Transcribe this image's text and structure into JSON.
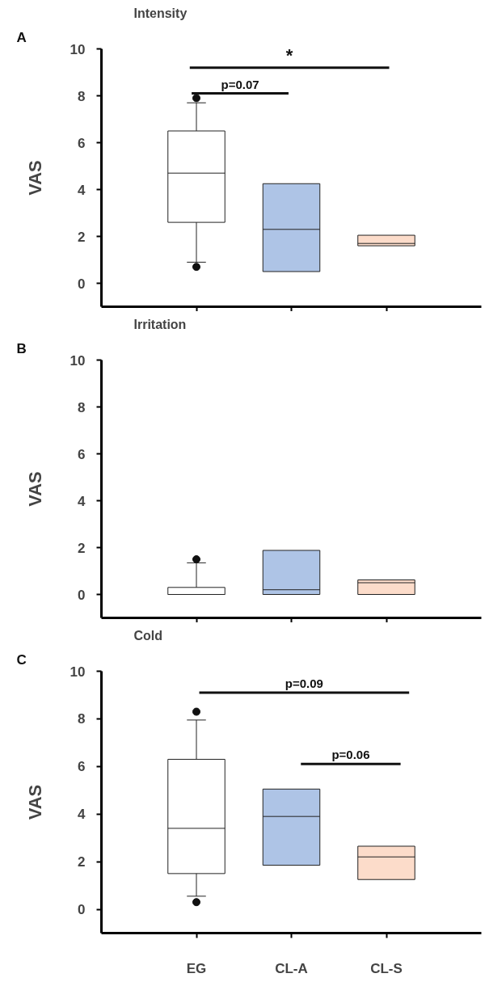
{
  "chart_data": [
    {
      "type": "box",
      "title": "Intensity",
      "ylabel": "VAS",
      "categories": [
        null,
        null,
        null
      ],
      "colors": [
        "#ffffff",
        "#aec4e6",
        "#fcdcca"
      ],
      "ylim": [
        -1,
        10
      ],
      "yticks": [
        0,
        2,
        4,
        6,
        8,
        10
      ],
      "tick_labels": "y",
      "boxes": [
        {
          "low": 0.9,
          "q1": 2.6,
          "median": 4.7,
          "q3": 6.5,
          "high": 7.7,
          "outliers": [
            0.7,
            7.9
          ]
        },
        {
          "low": 0.5,
          "q1": 0.5,
          "median": 2.3,
          "q3": 4.25,
          "high": 4.25
        },
        {
          "low": 1.6,
          "q1": 1.6,
          "median": 1.7,
          "q3": 2.05,
          "high": 2.05
        }
      ],
      "annotations": [
        "A",
        "*",
        "p=0.07"
      ]
    },
    {
      "type": "box",
      "title": "Irritation",
      "ylabel": "VAS",
      "categories": [
        null,
        null,
        null
      ],
      "colors": [
        "#ffffff",
        "#aec4e6",
        "#fcdcca"
      ],
      "ylim": [
        -1,
        10
      ],
      "yticks": [
        0,
        2,
        4,
        6,
        8,
        10
      ],
      "tick_labels": "y",
      "boxes": [
        {
          "low": 0,
          "q1": 0,
          "median": 0,
          "q3": 0.3,
          "high": 1.35,
          "outliers": [
            1.5
          ]
        },
        {
          "low": 0,
          "q1": 0,
          "median": 0.2,
          "q3": 1.88,
          "high": 1.88
        },
        {
          "low": 0,
          "q1": 0,
          "median": 0.5,
          "q3": 0.62,
          "high": 0.62
        }
      ],
      "annotations": [
        "B"
      ]
    },
    {
      "type": "box",
      "title": "Cold",
      "ylabel": "VAS",
      "categories": [
        "EG",
        "CL-A",
        "CL-S"
      ],
      "colors": [
        "#ffffff",
        "#aec4e6",
        "#fcdcca"
      ],
      "ylim": [
        -1,
        10
      ],
      "yticks": [
        0,
        2,
        4,
        6,
        8,
        10
      ],
      "boxes": [
        {
          "low": 0.55,
          "q1": 1.5,
          "median": 3.4,
          "q3": 6.3,
          "high": 7.95,
          "outliers": [
            0.3,
            8.3
          ]
        },
        {
          "low": 1.85,
          "q1": 1.85,
          "median": 3.9,
          "q3": 5.05,
          "high": 5.05
        },
        {
          "low": 1.25,
          "q1": 1.25,
          "median": 2.2,
          "q3": 2.65,
          "high": 2.65
        }
      ],
      "annotations": [
        "C",
        "p=0.09",
        "p=0.06"
      ]
    }
  ]
}
